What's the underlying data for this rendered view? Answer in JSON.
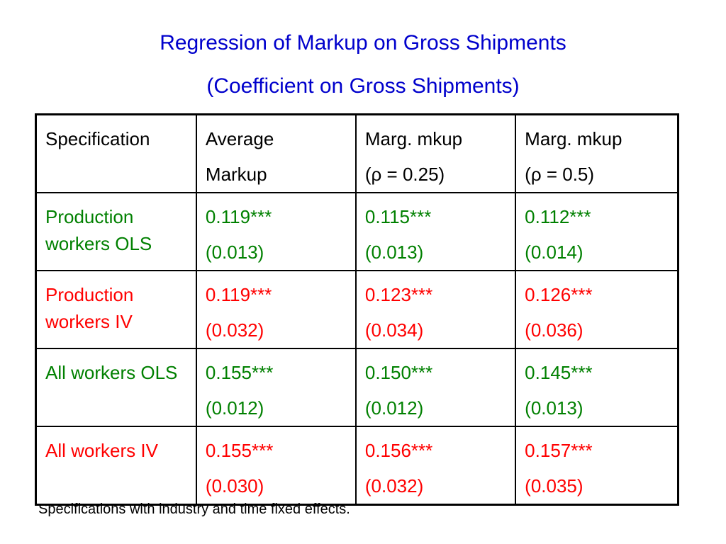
{
  "title": "Regression of Markup on Gross Shipments",
  "subtitle": "(Coefficient on Gross Shipments)",
  "colors": {
    "title": "#0000cc",
    "ols": "#008000",
    "iv": "#ff0000",
    "text": "#000000"
  },
  "table": {
    "headers": [
      {
        "line1": "Specification",
        "line2": ""
      },
      {
        "line1": "Average",
        "line2": "Markup"
      },
      {
        "line1": "Marg. mkup",
        "line2": "(ρ = 0.25)"
      },
      {
        "line1": "Marg. mkup",
        "line2": "(ρ = 0.5)"
      }
    ],
    "rows": [
      {
        "label": "Production workers OLS",
        "color": "green",
        "cells": [
          {
            "coef": "0.119***",
            "se": "(0.013)"
          },
          {
            "coef": "0.115***",
            "se": "(0.013)"
          },
          {
            "coef": "0.112***",
            "se": "(0.014)"
          }
        ]
      },
      {
        "label": "Production workers IV",
        "color": "red",
        "cells": [
          {
            "coef": "0.119***",
            "se": "(0.032)"
          },
          {
            "coef": "0.123***",
            "se": "(0.034)"
          },
          {
            "coef": "0.126***",
            "se": "(0.036)"
          }
        ]
      },
      {
        "label": "All workers OLS",
        "color": "green",
        "cells": [
          {
            "coef": "0.155***",
            "se": "(0.012)"
          },
          {
            "coef": "0.150***",
            "se": "(0.012)"
          },
          {
            "coef": "0.145***",
            "se": "(0.013)"
          }
        ]
      },
      {
        "label": "All workers IV",
        "color": "red",
        "cells": [
          {
            "coef": "0.155***",
            "se": "(0.030)"
          },
          {
            "coef": "0.156***",
            "se": "(0.032)"
          },
          {
            "coef": "0.157***",
            "se": "(0.035)"
          }
        ]
      }
    ]
  },
  "footnote": "Specifications with industry and time fixed effects."
}
